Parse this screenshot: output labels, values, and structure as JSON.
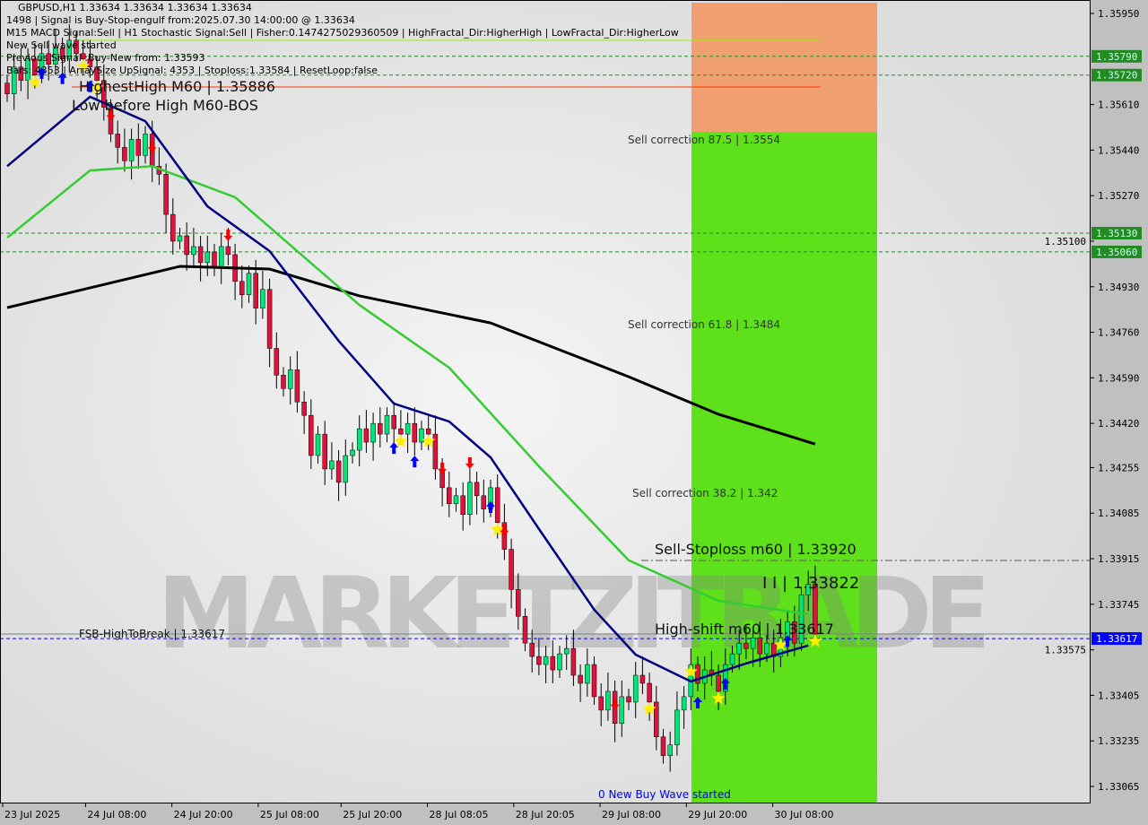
{
  "header": {
    "symbol_line": "GBPUSD,H1  1.33634 1.33634 1.33634 1.33634",
    "signal_line": "1498 | Signal is Buy-Stop-engulf from:2025.07.30 14:00:00 @ 1.33634",
    "indicator_line": "M15 MACD Signal:Sell | H1 Stochastic Signal:Sell | Fisher:0.1474275029360509 | HighFractal_Dir:HigherHigh | LowFractal_Dir:HigherLow",
    "wave_overlay": "New Sell wave started",
    "highest_high": "HighestHigh   M60 | 1.35886",
    "previous_signal": "Previous Signal :Buy-New from: 1.33593",
    "bars_line": "Bars: 4353 | ArraySize UpSignal: 4353 | Stoploss:1.33584 | ResetLoop:false"
  },
  "annotations": {
    "low_before_high": "Low before High    M60-BOS",
    "sell_corr_875": "Sell correction 87.5 | 1.3554",
    "sell_corr_618": "Sell correction 61.8 | 1.3484",
    "sell_corr_382": "Sell correction 38.2 | 1.342",
    "sell_stoploss": "Sell-Stoploss m60  |  1.33920",
    "ii_level": "I I | 1.33822",
    "high_shift": "High-shift m60  |  1.33617",
    "fsb": "FSB-HighToBreak | 1.33617",
    "new_buy_wave": "0 New Buy Wave started",
    "watermark": "MARKETZITRADE"
  },
  "chart_data": {
    "type": "candlestick",
    "symbol": "GBPUSD",
    "timeframe": "H1",
    "ylim": [
      1.3303,
      1.36
    ],
    "y_ticks": [
      "1.35950",
      "1.35610",
      "1.35440",
      "1.35270",
      "1.35100",
      "1.34930",
      "1.34760",
      "1.34590",
      "1.34420",
      "1.34255",
      "1.34085",
      "1.33915",
      "1.33745",
      "1.33575",
      "1.33405",
      "1.33235",
      "1.33065"
    ],
    "x_ticks": [
      {
        "label": "23 Jul 2025",
        "bar": 0
      },
      {
        "label": "24 Jul 08:00",
        "bar": 12
      },
      {
        "label": "24 Jul 20:00",
        "bar": 24.5
      },
      {
        "label": "25 Jul 08:00",
        "bar": 37
      },
      {
        "label": "25 Jul 20:00",
        "bar": 49
      },
      {
        "label": "28 Jul 08:05",
        "bar": 61.5
      },
      {
        "label": "28 Jul 20:05",
        "bar": 74
      },
      {
        "label": "29 Jul 08:00",
        "bar": 86.5
      },
      {
        "label": "29 Jul 20:00",
        "bar": 99
      },
      {
        "label": "30 Jul 08:00",
        "bar": 111.5
      }
    ],
    "closes": [
      1.3565,
      1.3575,
      1.357,
      1.3578,
      1.3572,
      1.358,
      1.3576,
      1.3582,
      1.3578,
      1.3585,
      1.358,
      1.3578,
      1.3575,
      1.357,
      1.356,
      1.355,
      1.3545,
      1.354,
      1.3548,
      1.3542,
      1.355,
      1.3538,
      1.3535,
      1.352,
      1.351,
      1.3512,
      1.3505,
      1.3508,
      1.3502,
      1.3506,
      1.35,
      1.3508,
      1.3505,
      1.3495,
      1.349,
      1.3498,
      1.3485,
      1.3492,
      1.347,
      1.346,
      1.3455,
      1.3462,
      1.345,
      1.3445,
      1.343,
      1.3438,
      1.3425,
      1.3428,
      1.342,
      1.343,
      1.3432,
      1.344,
      1.3435,
      1.3442,
      1.3438,
      1.3445,
      1.344,
      1.3438,
      1.3442,
      1.3435,
      1.344,
      1.3438,
      1.3425,
      1.3418,
      1.3412,
      1.3415,
      1.3408,
      1.342,
      1.3415,
      1.341,
      1.3418,
      1.3405,
      1.3395,
      1.338,
      1.337,
      1.336,
      1.3355,
      1.3352,
      1.3355,
      1.335,
      1.3356,
      1.3358,
      1.3348,
      1.3345,
      1.3352,
      1.334,
      1.3335,
      1.3342,
      1.333,
      1.334,
      1.3338,
      1.3348,
      1.3345,
      1.3338,
      1.3325,
      1.3318,
      1.3322,
      1.3335,
      1.334,
      1.3352,
      1.3345,
      1.335,
      1.3348,
      1.3342,
      1.3352,
      1.3356,
      1.336,
      1.3358,
      1.3362,
      1.3356,
      1.336,
      1.3355,
      1.3362,
      1.3368,
      1.336,
      1.3378,
      1.3382,
      1.33634
    ],
    "ma_lines": [
      {
        "color": "#000000",
        "points": [
          [
            0,
            1.34852
          ],
          [
            25,
            1.35006
          ],
          [
            38,
            1.34996
          ],
          [
            51,
            1.34896
          ],
          [
            70,
            1.34795
          ],
          [
            90,
            1.34594
          ],
          [
            103,
            1.34454
          ],
          [
            117,
            1.34343
          ]
        ]
      },
      {
        "color": "#33cc33",
        "points": [
          [
            0,
            1.35113
          ],
          [
            12,
            1.35364
          ],
          [
            21,
            1.3538
          ],
          [
            33,
            1.35264
          ],
          [
            42,
            1.35063
          ],
          [
            51,
            1.34862
          ],
          [
            64,
            1.34628
          ],
          [
            77,
            1.3426
          ],
          [
            90,
            1.33909
          ],
          [
            103,
            1.33758
          ],
          [
            116,
            1.33708
          ]
        ]
      },
      {
        "color": "#000080",
        "points": [
          [
            0,
            1.3538
          ],
          [
            12,
            1.35639
          ],
          [
            20,
            1.35548
          ],
          [
            29,
            1.3523
          ],
          [
            38,
            1.35063
          ],
          [
            48,
            1.34728
          ],
          [
            56,
            1.34494
          ],
          [
            64,
            1.34427
          ],
          [
            70,
            1.34293
          ],
          [
            77,
            1.34026
          ],
          [
            85,
            1.33725
          ],
          [
            91,
            1.33557
          ],
          [
            99,
            1.33457
          ],
          [
            107,
            1.33524
          ],
          [
            116,
            1.33591
          ]
        ]
      }
    ],
    "levels": [
      {
        "price": "1.35790",
        "color": "#228b22",
        "style": "dashed",
        "tag": true
      },
      {
        "price": "1.35720",
        "color": "#228b22",
        "style": "dashed",
        "tag": true
      },
      {
        "price": "1.35130",
        "color": "#228b22",
        "style": "dashed",
        "tag": true
      },
      {
        "price": "1.35060",
        "color": "#228b22",
        "style": "dashed",
        "tag": true
      },
      {
        "price": "1.33617",
        "color": "#0000ff",
        "style": "dashed",
        "tag": true,
        "tagcolor": "#0000ff"
      },
      {
        "price": "1.33634",
        "color": "#808080",
        "style": "solid",
        "tag": false
      }
    ],
    "zones": [
      {
        "name": "sell-zone",
        "from": 1.35508,
        "to": 1.36,
        "color": "#f0a070"
      },
      {
        "name": "buy-zone",
        "from": 1.33,
        "to": 1.35508,
        "color": "#5ee01a"
      }
    ],
    "markers": [
      {
        "bar": 4,
        "type": "star"
      },
      {
        "bar": 11,
        "type": "star"
      },
      {
        "bar": 13,
        "type": "star"
      },
      {
        "bar": 5,
        "type": "up"
      },
      {
        "bar": 8,
        "type": "up"
      },
      {
        "bar": 12,
        "type": "up"
      },
      {
        "bar": 15,
        "type": "down"
      },
      {
        "bar": 21,
        "type": "down"
      },
      {
        "bar": 32,
        "type": "down"
      },
      {
        "bar": 56,
        "type": "up"
      },
      {
        "bar": 59,
        "type": "up"
      },
      {
        "bar": 57,
        "type": "star"
      },
      {
        "bar": 61,
        "type": "star"
      },
      {
        "bar": 63,
        "type": "down"
      },
      {
        "bar": 67,
        "type": "down"
      },
      {
        "bar": 70,
        "type": "up"
      },
      {
        "bar": 71,
        "type": "star"
      },
      {
        "bar": 72,
        "type": "down"
      },
      {
        "bar": 88,
        "type": "down"
      },
      {
        "bar": 93,
        "type": "star"
      },
      {
        "bar": 99,
        "type": "star"
      },
      {
        "bar": 103,
        "type": "star"
      },
      {
        "bar": 104,
        "type": "up"
      },
      {
        "bar": 100,
        "type": "up"
      },
      {
        "bar": 112,
        "type": "star"
      },
      {
        "bar": 113,
        "type": "up"
      },
      {
        "bar": 117,
        "type": "star"
      }
    ],
    "colors": {
      "bull": "#00e676",
      "bear": "#dc143c",
      "wick": "#000000",
      "bg": "#dcdcdc"
    }
  }
}
